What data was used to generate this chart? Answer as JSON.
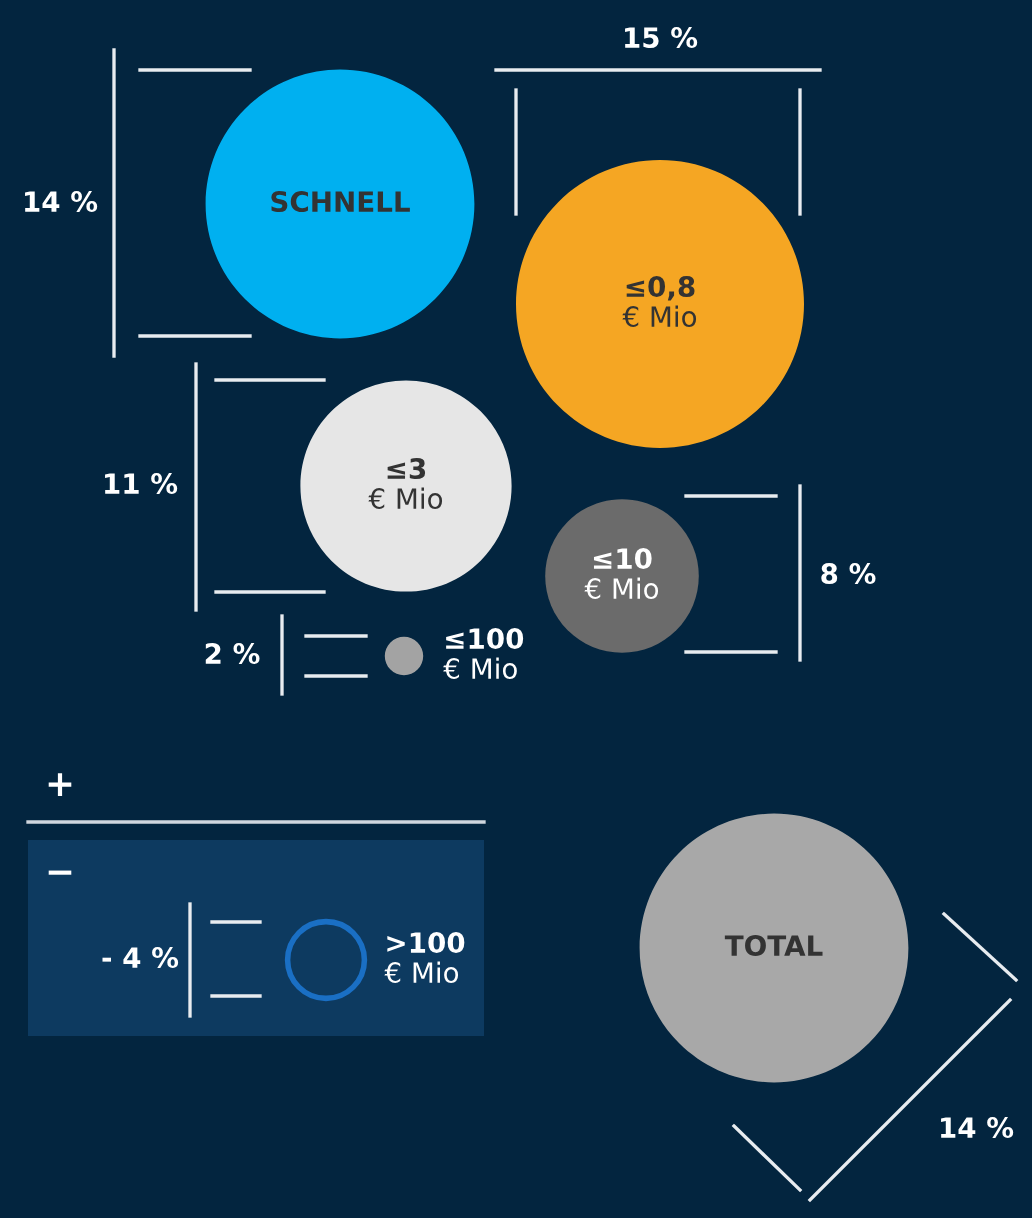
{
  "chart_data": {
    "type": "other",
    "categories": [
      "SCHNELL",
      "≤0,8\n€ Mio",
      "≤3\n€ Mio",
      "≤10\n€ Mio",
      "≤100\n€ Mio",
      ">100\n€ Mio",
      "TOTAL"
    ],
    "values": [
      14,
      15,
      11,
      8,
      2,
      -4,
      14
    ],
    "value_labels": [
      "14 %",
      "15 %",
      "11 %",
      "8 %",
      "2 %",
      "- 4 %",
      "14 %"
    ],
    "colors": [
      "#00b0f0",
      "#f5a623",
      "#e6e6e6",
      "#6b6b6b",
      "#a3a3a3",
      "#1a6fc4",
      "#a8a8a8"
    ],
    "annotations": [
      "+",
      "−"
    ]
  }
}
